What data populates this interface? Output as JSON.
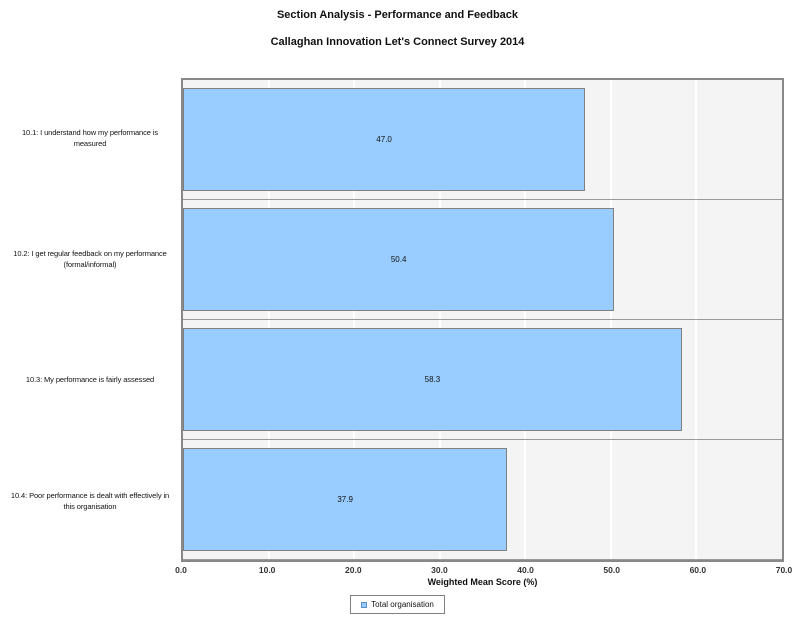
{
  "chart_data": {
    "type": "bar",
    "orientation": "horizontal",
    "title": "Section Analysis - Performance and Feedback",
    "subtitle": "Callaghan Innovation Let's Connect Survey 2014",
    "categories": [
      "10.1: I understand how my performance is measured",
      "10.2: I get regular feedback on my performance (formal/informal)",
      "10.3: My performance is fairly assessed",
      "10.4: Poor performance is dealt with effectively in this organisation"
    ],
    "series": [
      {
        "name": "Total organisation",
        "values": [
          47.0,
          50.4,
          58.3,
          37.9
        ]
      }
    ],
    "value_labels": [
      "47.0",
      "50.4",
      "58.3",
      "37.9"
    ],
    "xlabel": "Weighted Mean Score (%)",
    "xlim": [
      0,
      70
    ],
    "xticks": [
      "0.0",
      "10.0",
      "20.0",
      "30.0",
      "40.0",
      "50.0",
      "60.0",
      "70.0"
    ],
    "grid": true,
    "legend": {
      "position": "bottom",
      "items": [
        {
          "label": "Total organisation",
          "color": "#99CCFF"
        }
      ]
    },
    "colors": {
      "bar_fill": "#99CCFF",
      "bar_border": "#808080",
      "plot_background": "#F4F4F4",
      "plot_border": "#888888",
      "gridline": "#FFFFFF",
      "row_divider": "#999999"
    }
  }
}
